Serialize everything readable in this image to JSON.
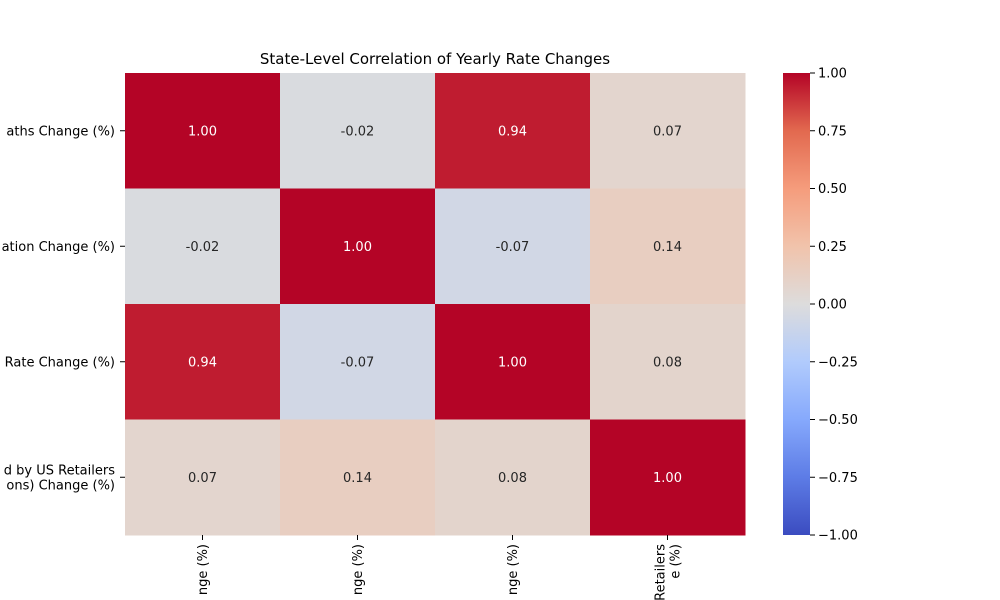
{
  "chart_data": {
    "type": "heatmap",
    "title": "State-Level Correlation of Yearly Rate Changes",
    "row_labels": [
      [
        "aths Change (%)"
      ],
      [
        "ation Change (%)"
      ],
      [
        "Rate Change (%)"
      ],
      [
        "d by US Retailers",
        "ons) Change (%)"
      ]
    ],
    "col_labels": [
      [
        "nge (%)"
      ],
      [
        "nge (%)"
      ],
      [
        "nge (%)"
      ],
      [
        "Retailers",
        "e (%)"
      ]
    ],
    "values": [
      [
        1.0,
        -0.02,
        0.94,
        0.07
      ],
      [
        -0.02,
        1.0,
        -0.07,
        0.14
      ],
      [
        0.94,
        -0.07,
        1.0,
        0.08
      ],
      [
        0.07,
        0.14,
        0.08,
        1.0
      ]
    ],
    "value_labels": [
      [
        "1.00",
        "-0.02",
        "0.94",
        "0.07"
      ],
      [
        "-0.02",
        "1.00",
        "-0.07",
        "0.14"
      ],
      [
        "0.94",
        "-0.07",
        "1.00",
        "0.08"
      ],
      [
        "0.07",
        "0.14",
        "0.08",
        "1.00"
      ]
    ],
    "colormap": "coolwarm",
    "vmin": -1.0,
    "vmax": 1.0,
    "colorbar_ticks": [
      1.0,
      0.75,
      0.5,
      0.25,
      0.0,
      -0.25,
      -0.5,
      -0.75,
      -1.0
    ],
    "colorbar_tick_labels": [
      "1.00",
      "0.75",
      "0.50",
      "0.25",
      "0.00",
      "−0.25",
      "−0.50",
      "−0.75",
      "−1.00"
    ]
  }
}
